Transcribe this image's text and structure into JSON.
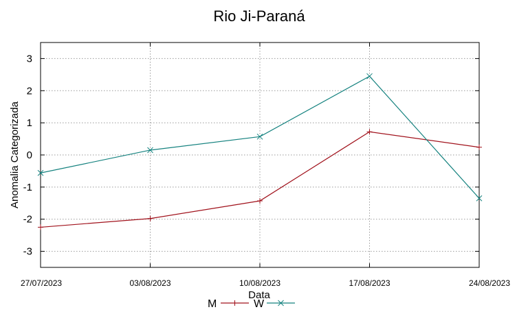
{
  "chart_data": {
    "type": "line",
    "title": "Rio Ji-Paraná",
    "xlabel": "Data",
    "ylabel": "Anomalia Categorizada",
    "categories": [
      "27/07/2023",
      "03/08/2023",
      "10/08/2023",
      "17/08/2023",
      "24/08/2023"
    ],
    "ylim": [
      -3.5,
      3.5
    ],
    "yticks": [
      3,
      2,
      1,
      0,
      -1,
      -2,
      -3
    ],
    "grid": true,
    "legend_position": "bottom-center",
    "series": [
      {
        "name": "M",
        "color": "#a0101a",
        "marker": "plus",
        "values": [
          -2.25,
          -1.98,
          -1.43,
          0.72,
          0.24
        ]
      },
      {
        "name": "W",
        "color": "#13817e",
        "marker": "cross",
        "values": [
          -0.56,
          0.15,
          0.57,
          2.45,
          -1.35
        ]
      }
    ]
  }
}
